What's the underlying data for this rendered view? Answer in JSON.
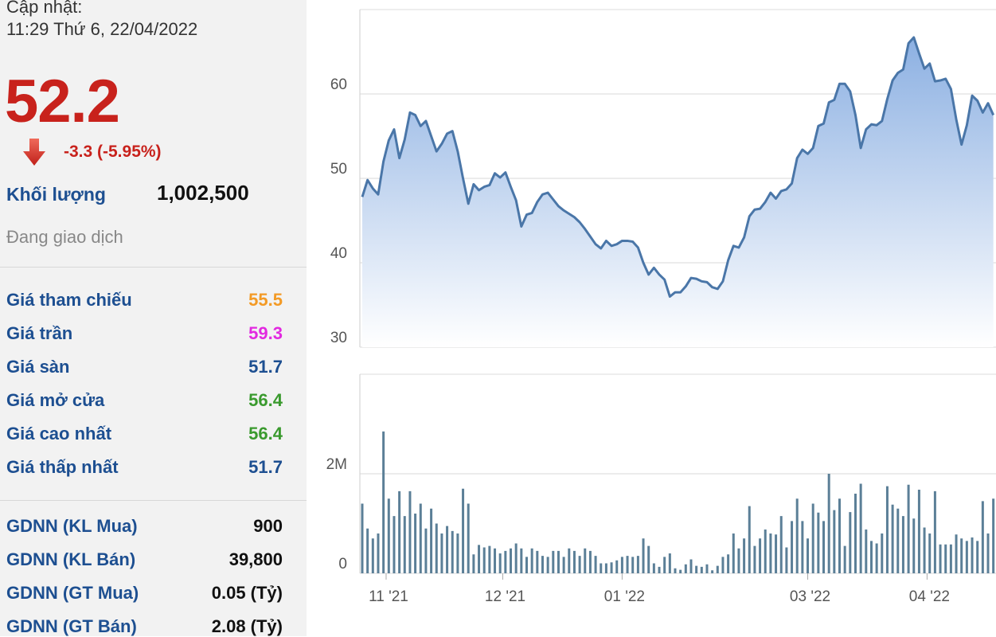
{
  "panel": {
    "updated_label": "Cập nhật:",
    "updated_time": "11:29 Thứ 6, 22/04/2022",
    "price": 52.2,
    "change": "-3.3 (-5.95%)",
    "volume_label": "Khối lượng",
    "volume": "1,002,500",
    "status": "Đang giao dịch",
    "prices": [
      {
        "label": "Giá tham chiếu",
        "value": 55.5,
        "color": "#f39a25"
      },
      {
        "label": "Giá trần",
        "value": 59.3,
        "color": "#e229e0"
      },
      {
        "label": "Giá sàn",
        "value": 51.7,
        "color": "#1d4f91"
      },
      {
        "label": "Giá mở cửa",
        "value": 56.4,
        "color": "#3a9a2e"
      },
      {
        "label": "Giá cao nhất",
        "value": 56.4,
        "color": "#3a9a2e"
      },
      {
        "label": "Giá thấp nhất",
        "value": 51.7,
        "color": "#1d4f91"
      }
    ],
    "foreign": [
      {
        "label": "GDNN (KL Mua)",
        "value": 900
      },
      {
        "label": "GDNN (KL Bán)",
        "value": "39,800"
      },
      {
        "label": "GDNN (GT Mua)",
        "value": "0.05 (Tỷ)"
      },
      {
        "label": "GDNN (GT Bán)",
        "value": "2.08 (Tỷ)"
      }
    ]
  },
  "chart_data": [
    {
      "type": "area",
      "color": "#4a76a8",
      "grid": true,
      "xlim": [
        -0.45,
        119.5
      ],
      "ylim": [
        30,
        70
      ],
      "yticks": [
        30,
        40,
        50,
        60
      ],
      "values": [
        47.8,
        49.8,
        48.8,
        48.1,
        52,
        54.5,
        55.8,
        52.4,
        54.6,
        57.8,
        57.5,
        56.2,
        56.8,
        55,
        53.2,
        54.1,
        55.3,
        55.6,
        53.2,
        50,
        47,
        49.3,
        48.6,
        49,
        49.2,
        50.6,
        50.1,
        50.7,
        49,
        47.4,
        44.3,
        45.7,
        45.9,
        47.2,
        48.1,
        48.3,
        47.5,
        46.7,
        46.2,
        45.8,
        45.4,
        44.8,
        44,
        43.1,
        42.2,
        41.7,
        42.6,
        42,
        42.2,
        42.6,
        42.6,
        42.5,
        41.8,
        40,
        38.6,
        39.4,
        38.6,
        38,
        36,
        36.5,
        36.5,
        37.2,
        38.2,
        38.1,
        37.8,
        37.7,
        37.1,
        36.9,
        37.8,
        40.3,
        42,
        41.8,
        43,
        45.5,
        46.3,
        46.4,
        47.2,
        48.3,
        47.6,
        48.5,
        48.7,
        49.4,
        52.4,
        53.4,
        52.9,
        53.6,
        56.2,
        56.5,
        59,
        59.3,
        61.2,
        61.2,
        60.3,
        57.5,
        53.6,
        55.8,
        56.4,
        56.3,
        56.8,
        59.4,
        61.6,
        62.5,
        62.9,
        66,
        66.7,
        64.8,
        63,
        63.6,
        61.5,
        61.6,
        61.8,
        60.6,
        57,
        54,
        56.3,
        59.8,
        59.2,
        57.8,
        58.9,
        57.5
      ]
    },
    {
      "type": "bar",
      "color": "#5b7f97",
      "grid": true,
      "xlim": [
        -0.45,
        119.5
      ],
      "ylim": [
        0,
        4000000
      ],
      "yticks": [
        0,
        {
          "value": 2000000,
          "label": "2M"
        }
      ],
      "xticks": [
        {
          "value": 4.5,
          "label": "11 '21"
        },
        {
          "value": 26.5,
          "label": "12 '21"
        },
        {
          "value": 49,
          "label": "01 '22"
        },
        {
          "value": 84,
          "label": "03 '22"
        },
        {
          "value": 106.5,
          "label": "04 '22"
        }
      ],
      "values": [
        1400000,
        900000,
        700000,
        800000,
        2850000,
        1500000,
        1150000,
        1650000,
        1150000,
        1650000,
        1200000,
        1400000,
        900000,
        1300000,
        1000000,
        800000,
        950000,
        850000,
        800000,
        1700000,
        1400000,
        380000,
        570000,
        520000,
        550000,
        500000,
        400000,
        450000,
        500000,
        600000,
        500000,
        330000,
        500000,
        450000,
        350000,
        330000,
        450000,
        450000,
        330000,
        500000,
        450000,
        350000,
        500000,
        450000,
        350000,
        200000,
        200000,
        220000,
        260000,
        330000,
        350000,
        330000,
        350000,
        700000,
        550000,
        200000,
        130000,
        330000,
        400000,
        100000,
        70000,
        180000,
        280000,
        150000,
        130000,
        180000,
        60000,
        150000,
        330000,
        380000,
        800000,
        500000,
        700000,
        1350000,
        550000,
        700000,
        880000,
        800000,
        780000,
        1150000,
        520000,
        1050000,
        1500000,
        1050000,
        700000,
        1400000,
        1220000,
        1050000,
        2000000,
        1270000,
        1500000,
        550000,
        1230000,
        1600000,
        1800000,
        880000,
        650000,
        600000,
        800000,
        1750000,
        1380000,
        1300000,
        1150000,
        1780000,
        1100000,
        1680000,
        920000,
        800000,
        1650000,
        580000,
        580000,
        580000,
        780000,
        700000,
        650000,
        720000,
        650000,
        1450000,
        800000,
        1500000
      ]
    }
  ]
}
